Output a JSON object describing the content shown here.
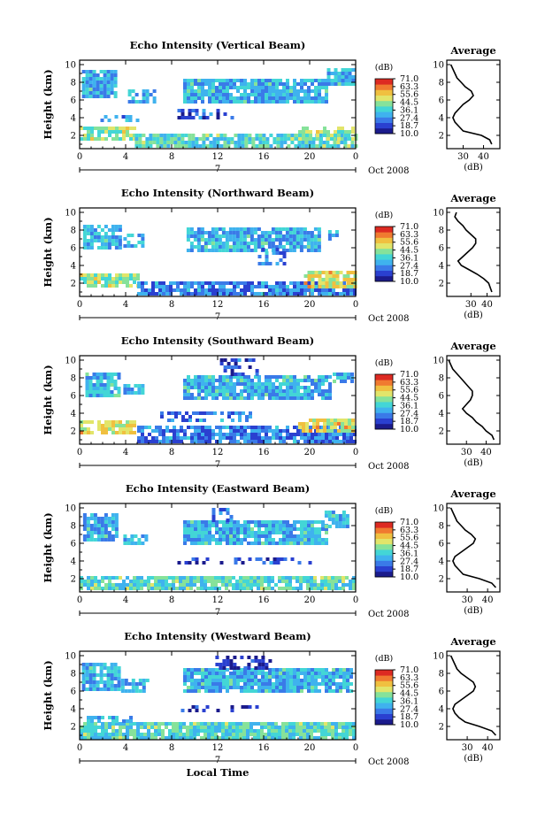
{
  "colors": [
    "#1b1b8c",
    "#2a40d0",
    "#3a7ae8",
    "#3fb2ee",
    "#43d6d6",
    "#86e29a",
    "#e2e56a",
    "#f0c040",
    "#f07a30",
    "#dd2a22"
  ],
  "colorbar": {
    "unit": "(dB)",
    "labels": [
      "71.0",
      "63.3",
      "55.6",
      "44.5",
      "36.1",
      "27.4",
      "18.7",
      "10.0"
    ]
  },
  "chart_data": [
    {
      "type": "heatmap",
      "title": "Echo Intensity (Vertical Beam)",
      "ylabel": "Height (km)",
      "x_ticks": [
        "0",
        "4",
        "8",
        "12",
        "16",
        "20",
        "0"
      ],
      "x_range": [
        0,
        24
      ],
      "y_ticks": [
        "2",
        "4",
        "6",
        "8",
        "10"
      ],
      "y_range": [
        0.5,
        10.5
      ],
      "date_label": "7",
      "month_label": "Oct 2008",
      "z_unit": "dB",
      "z_range": [
        10.0,
        71.0
      ],
      "profile": {
        "title": "Average",
        "xlabel": "(dB)",
        "x_ticks": [
          "30",
          "40"
        ],
        "x_range": [
          22,
          48
        ],
        "height_km": [
          1,
          1.5,
          2,
          2.5,
          3,
          3.5,
          4,
          4.5,
          5,
          5.5,
          6,
          6.5,
          7,
          7.5,
          8,
          8.5,
          9,
          9.5,
          10
        ],
        "db": [
          44,
          43,
          39,
          30,
          28,
          26,
          25,
          26,
          28,
          30,
          33,
          35,
          34,
          31,
          29,
          27,
          26,
          25,
          24
        ]
      }
    },
    {
      "type": "heatmap",
      "title": "Echo Intensity (Northward Beam)",
      "ylabel": "Height (km)",
      "x_ticks": [
        "0",
        "4",
        "8",
        "12",
        "16",
        "20",
        "0"
      ],
      "x_range": [
        0,
        24
      ],
      "y_ticks": [
        "2",
        "4",
        "6",
        "8",
        "10"
      ],
      "y_range": [
        0.5,
        10.5
      ],
      "date_label": "7",
      "month_label": "Oct 2008",
      "z_unit": "dB",
      "z_range": [
        10.0,
        71.0
      ],
      "profile": {
        "title": "Average",
        "xlabel": "(dB)",
        "x_ticks": [
          "30",
          "40"
        ],
        "x_range": [
          15,
          48
        ],
        "height_km": [
          1,
          1.5,
          2,
          2.5,
          3,
          3.5,
          4,
          4.5,
          5,
          5.5,
          6,
          6.5,
          7,
          7.5,
          8,
          8.5,
          9,
          9.5,
          10
        ],
        "db": [
          43,
          42,
          41,
          38,
          34,
          29,
          24,
          22,
          25,
          28,
          31,
          33,
          33,
          30,
          27,
          25,
          22,
          20,
          21
        ]
      }
    },
    {
      "type": "heatmap",
      "title": "Echo Intensity (Southward Beam)",
      "ylabel": "Height (km)",
      "x_ticks": [
        "0",
        "4",
        "8",
        "12",
        "16",
        "20",
        "0"
      ],
      "x_range": [
        0,
        24
      ],
      "y_ticks": [
        "2",
        "4",
        "6",
        "8",
        "10"
      ],
      "y_range": [
        0.5,
        10.5
      ],
      "date_label": "7",
      "month_label": "Oct 2008",
      "z_unit": "dB",
      "z_range": [
        10.0,
        71.0
      ],
      "profile": {
        "title": "Average",
        "xlabel": "(dB)",
        "x_ticks": [
          "30",
          "40"
        ],
        "x_range": [
          20,
          47
        ],
        "height_km": [
          1,
          1.5,
          2,
          2.5,
          3,
          3.5,
          4,
          4.5,
          5,
          5.5,
          6,
          6.5,
          7,
          7.5,
          8,
          8.5,
          9,
          9.5,
          10
        ],
        "db": [
          44,
          43,
          40,
          38,
          35,
          33,
          30,
          28,
          30,
          32,
          33,
          33,
          31,
          29,
          27,
          25,
          23,
          22,
          21
        ]
      }
    },
    {
      "type": "heatmap",
      "title": "Echo Intensity (Eastward Beam)",
      "ylabel": "Height (km)",
      "x_ticks": [
        "0",
        "4",
        "8",
        "12",
        "16",
        "20",
        "0"
      ],
      "x_range": [
        0,
        24
      ],
      "y_ticks": [
        "2",
        "4",
        "6",
        "8",
        "10"
      ],
      "y_range": [
        0.5,
        10.5
      ],
      "date_label": "7",
      "month_label": "Oct 2008",
      "z_unit": "dB",
      "z_range": [
        10.0,
        71.0
      ],
      "profile": {
        "title": "Average",
        "xlabel": "(dB)",
        "x_ticks": [
          "30",
          "40"
        ],
        "x_range": [
          20,
          46
        ],
        "height_km": [
          1,
          1.5,
          2,
          2.5,
          3,
          3.5,
          4,
          4.5,
          5,
          5.5,
          6,
          6.5,
          7,
          7.5,
          8,
          8.5,
          9,
          9.5,
          10
        ],
        "db": [
          44,
          42,
          36,
          28,
          26,
          24,
          23,
          24,
          27,
          30,
          33,
          34,
          32,
          29,
          27,
          25,
          24,
          23,
          22
        ]
      }
    },
    {
      "type": "heatmap",
      "title": "Echo Intensity (Westward Beam)",
      "ylabel": "Height (km)",
      "x_ticks": [
        "0",
        "4",
        "8",
        "12",
        "16",
        "20",
        "0"
      ],
      "x_range": [
        0,
        24
      ],
      "y_ticks": [
        "2",
        "4",
        "6",
        "8",
        "10"
      ],
      "y_range": [
        0.5,
        10.5
      ],
      "date_label": "7",
      "month_label": "Oct 2008",
      "xlabel": "Local Time",
      "z_unit": "dB",
      "z_range": [
        10.0,
        71.0
      ],
      "profile": {
        "title": "Average",
        "xlabel": "(dB)",
        "x_ticks": [
          "30",
          "40"
        ],
        "x_range": [
          20,
          46
        ],
        "height_km": [
          1,
          1.5,
          2,
          2.5,
          3,
          3.5,
          4,
          4.5,
          5,
          5.5,
          6,
          6.5,
          7,
          7.5,
          8,
          8.5,
          9,
          9.5,
          10
        ],
        "db": [
          44,
          42,
          36,
          29,
          26,
          24,
          23,
          24,
          27,
          30,
          33,
          34,
          33,
          30,
          27,
          25,
          24,
          23,
          22
        ]
      }
    }
  ]
}
